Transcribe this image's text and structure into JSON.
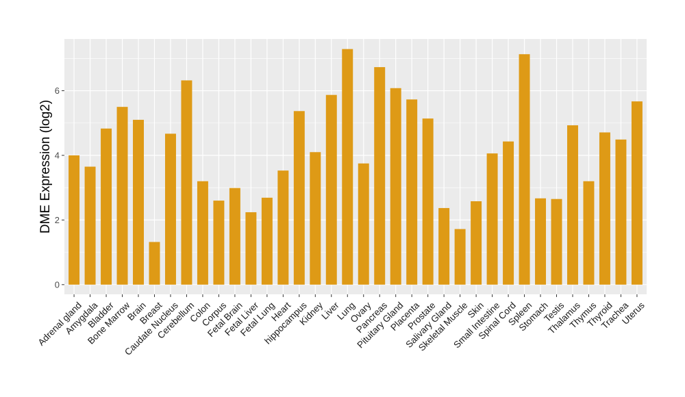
{
  "chart_data": {
    "type": "bar",
    "title": "",
    "xlabel": "",
    "ylabel": "DME Expression (log2)",
    "ylim": [
      -0.3,
      7.6
    ],
    "yticks": [
      0,
      2,
      4,
      6
    ],
    "grid": true,
    "bar_color": "#DE9A16",
    "panel_color": "#EBEBEB",
    "grid_color": "#FFFFFF",
    "categories": [
      "Adrenal gland",
      "Amygdala",
      "Bladder",
      "Bone Marrow",
      "Brain",
      "Breast",
      "Caudate Nucleus",
      "Cerebellum",
      "Colon",
      "Corpus",
      "Fetal Brain",
      "Fetal Liver",
      "Fetal Lung",
      "Heart",
      "hippocampus",
      "Kidney",
      "Liver",
      "Lung",
      "Ovary",
      "Pancreas",
      "Pituitary Gland",
      "Placenta",
      "Prostate",
      "Salivary Gland",
      "Skeletal Muscle",
      "Skin",
      "Small Intestine",
      "Spinal Cord",
      "Spleen",
      "Stomach",
      "Testis",
      "Thalamus",
      "Thymus",
      "Thyroid",
      "Trachea",
      "Uterus"
    ],
    "values": [
      4.0,
      3.65,
      4.83,
      5.5,
      5.1,
      1.32,
      4.67,
      6.32,
      3.2,
      2.6,
      2.99,
      2.24,
      2.69,
      3.53,
      5.37,
      4.1,
      5.87,
      7.29,
      3.75,
      6.73,
      6.08,
      5.73,
      5.14,
      2.37,
      1.72,
      2.58,
      4.06,
      4.43,
      7.13,
      2.67,
      2.65,
      4.93,
      3.2,
      4.71,
      4.49,
      5.67
    ]
  }
}
